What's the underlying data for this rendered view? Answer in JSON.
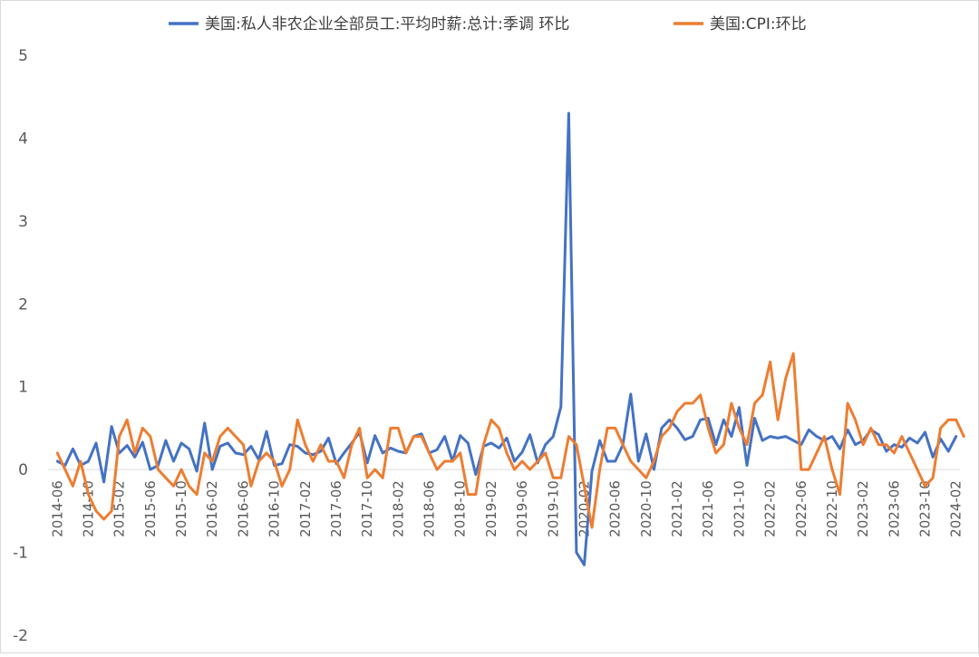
{
  "chart_data": {
    "type": "line",
    "title": "",
    "legend_position": "top",
    "ylim": [
      -2,
      5
    ],
    "yticks": [
      "5",
      "4",
      "3",
      "2",
      "1",
      "0",
      "-1",
      "-2"
    ],
    "x_tick_labels": [
      "2014-06",
      "2014-10",
      "2015-02",
      "2015-06",
      "2015-10",
      "2016-02",
      "2016-06",
      "2016-10",
      "2017-02",
      "2017-06",
      "2017-10",
      "2018-02",
      "2018-06",
      "2018-10",
      "2019-02",
      "2019-06",
      "2019-10",
      "2020-02",
      "2020-06",
      "2020-10",
      "2021-02",
      "2021-06",
      "2021-10",
      "2022-02",
      "2022-06",
      "2022-10",
      "2023-02",
      "2023-06",
      "2023-10",
      "2024-02"
    ],
    "start_month": "2014-06",
    "series": [
      {
        "name": "美国:私人非农企业全部员工:平均时薪:总计:季调 环比",
        "color": "#4472C4",
        "values": [
          0.1,
          0.05,
          0.25,
          0.05,
          0.1,
          0.32,
          -0.15,
          0.52,
          0.2,
          0.29,
          0.15,
          0.33,
          0,
          0.05,
          0.35,
          0.1,
          0.32,
          0.25,
          -0.02,
          0.56,
          0,
          0.28,
          0.32,
          0.2,
          0.18,
          0.28,
          0.12,
          0.46,
          0.05,
          0.07,
          0.3,
          0.28,
          0.2,
          0.18,
          0.22,
          0.38,
          0.07,
          0.2,
          0.32,
          0.45,
          0.08,
          0.41,
          0.2,
          0.26,
          0.22,
          0.2,
          0.4,
          0.43,
          0.2,
          0.24,
          0.4,
          0.1,
          0.41,
          0.32,
          -0.06,
          0.28,
          0.32,
          0.26,
          0.38,
          0.1,
          0.21,
          0.42,
          0.08,
          0.3,
          0.4,
          0.76,
          4.3,
          -1,
          -1.15,
          -0.02,
          0.35,
          0.1,
          0.1,
          0.3,
          0.91,
          0.1,
          0.43,
          0,
          0.5,
          0.6,
          0.5,
          0.36,
          0.4,
          0.6,
          0.62,
          0.3,
          0.6,
          0.4,
          0.75,
          0.05,
          0.62,
          0.35,
          0.4,
          0.38,
          0.4,
          0.35,
          0.3,
          0.48,
          0.4,
          0.35,
          0.4,
          0.25,
          0.48,
          0.3,
          0.35,
          0.48,
          0.42,
          0.22,
          0.3,
          0.27,
          0.38,
          0.32,
          0.45,
          0.15,
          0.37,
          0.22,
          0.4
        ]
      },
      {
        "name": "美国:CPI:环比",
        "color": "#ED7D31",
        "values": [
          0.2,
          0,
          -0.2,
          0.1,
          -0.3,
          -0.5,
          -0.6,
          -0.5,
          0.4,
          0.6,
          0.2,
          0.5,
          0.4,
          0,
          -0.1,
          -0.2,
          0,
          -0.2,
          -0.3,
          0.2,
          0.1,
          0.4,
          0.5,
          0.4,
          0.3,
          -0.2,
          0.1,
          0.2,
          0.1,
          -0.2,
          0,
          0.6,
          0.3,
          0.1,
          0.3,
          0.1,
          0.1,
          -0.1,
          0.3,
          0.5,
          -0.1,
          0,
          -0.1,
          0.5,
          0.5,
          0.2,
          0.4,
          0.4,
          0.2,
          0,
          0.1,
          0.1,
          0.2,
          -0.3,
          -0.3,
          0.3,
          0.6,
          0.5,
          0.2,
          0,
          0.1,
          0,
          0.1,
          0.2,
          -0.1,
          -0.1,
          0.4,
          0.3,
          -0.2,
          -0.7,
          0,
          0.5,
          0.5,
          0.3,
          0.1,
          0,
          -0.1,
          0.1,
          0.4,
          0.5,
          0.7,
          0.8,
          0.8,
          0.9,
          0.5,
          0.2,
          0.3,
          0.8,
          0.5,
          0.3,
          0.8,
          0.9,
          1.3,
          0.6,
          1.1,
          1.4,
          0,
          0,
          0.2,
          0.4,
          0,
          -0.3,
          0.8,
          0.6,
          0.3,
          0.5,
          0.3,
          0.3,
          0.2,
          0.4,
          0.2,
          0,
          -0.2,
          -0.1,
          0.5,
          0.6,
          0.6,
          0.4
        ]
      }
    ]
  }
}
